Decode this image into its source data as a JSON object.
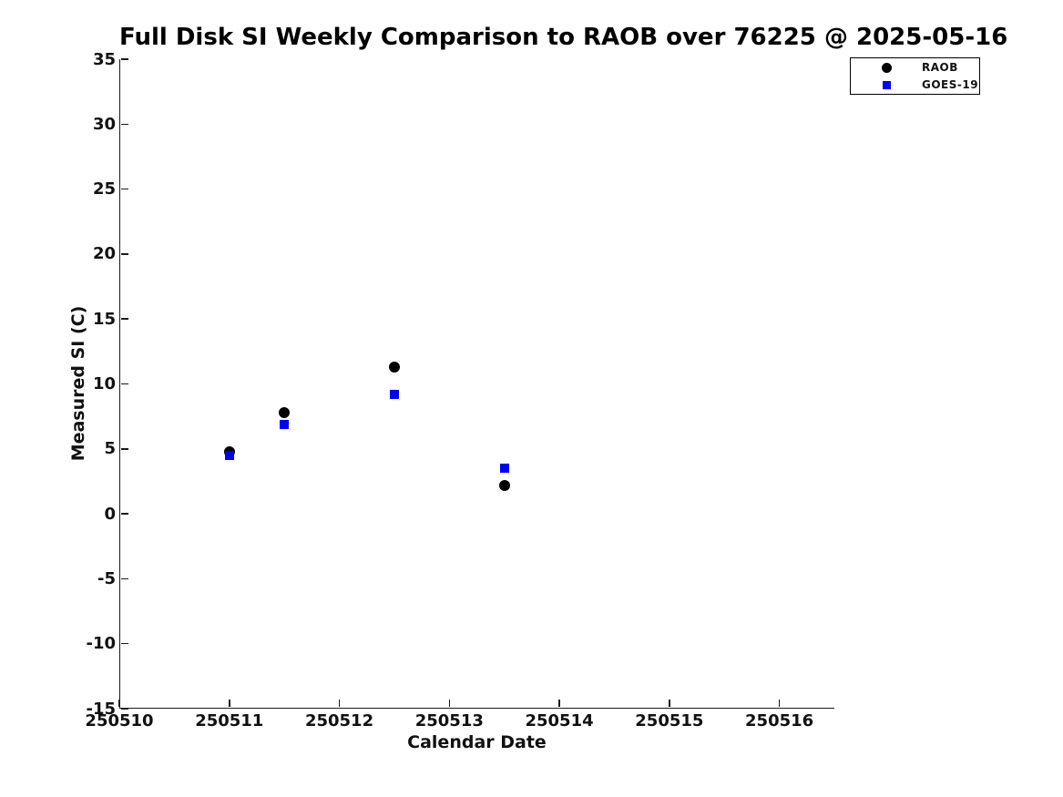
{
  "title": "Full Disk SI Weekly Comparison to RAOB over 76225 @ 2025-05-16",
  "chart_data": {
    "type": "scatter",
    "title": "Full Disk SI Weekly Comparison to RAOB over 76225 @ 2025-05-16",
    "xlabel": "Calendar Date",
    "ylabel": "Measured SI (C)",
    "xlim": [
      250510,
      250516.5
    ],
    "ylim": [
      -15,
      35
    ],
    "x_ticks": [
      250510,
      250511,
      250512,
      250513,
      250514,
      250515,
      250516
    ],
    "y_ticks": [
      35,
      30,
      25,
      20,
      15,
      10,
      5,
      0,
      -5,
      -10,
      -15
    ],
    "grid": false,
    "legend_position": "top-right",
    "colors": {
      "raob": "#000000",
      "goes19": "#0000ff",
      "axis": "#1a1a1a"
    },
    "series": [
      {
        "name": "RAOB",
        "marker": "circle",
        "color": "#000000",
        "points": [
          {
            "x": 250511.0,
            "y": 4.8
          },
          {
            "x": 250511.5,
            "y": 7.8
          },
          {
            "x": 250512.5,
            "y": 11.3
          },
          {
            "x": 250513.5,
            "y": 2.2
          }
        ]
      },
      {
        "name": "GOES-19",
        "marker": "square",
        "color": "#0000ff",
        "points": [
          {
            "x": 250511.0,
            "y": 4.5
          },
          {
            "x": 250511.5,
            "y": 6.9
          },
          {
            "x": 250512.5,
            "y": 9.2
          },
          {
            "x": 250513.5,
            "y": 3.5
          }
        ]
      }
    ]
  }
}
